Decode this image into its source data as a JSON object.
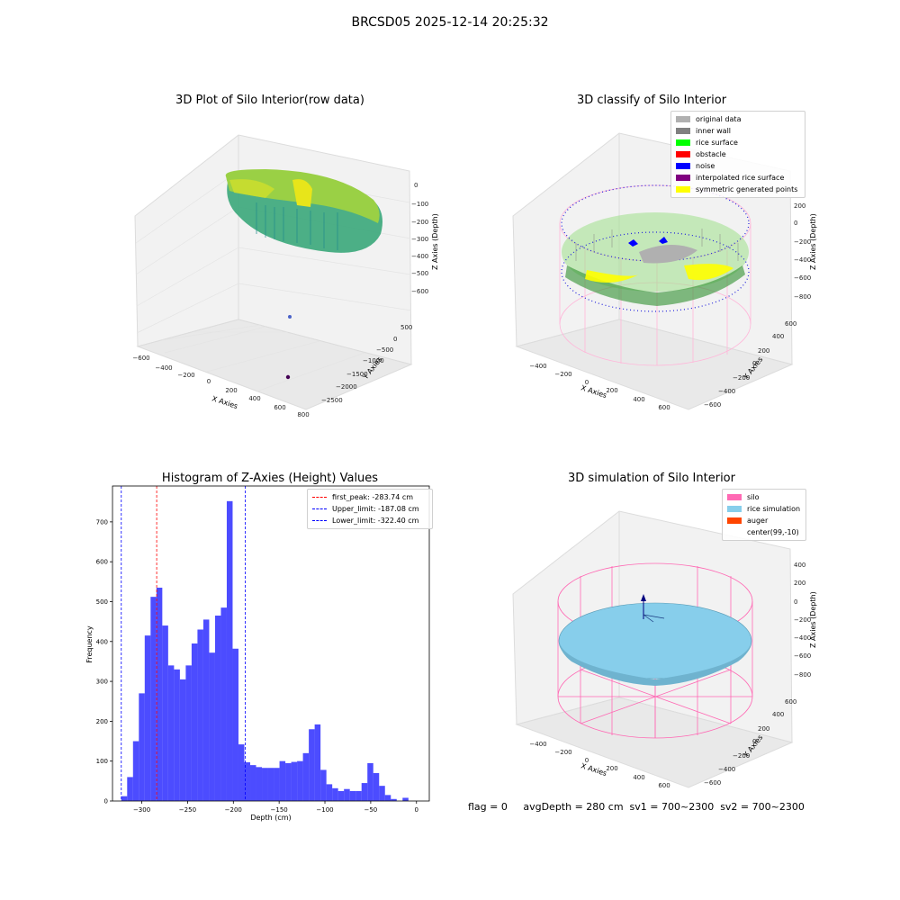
{
  "figure": {
    "title": "BRCSD05 2025-12-14 20:25:32",
    "status_line": "flag = 0     avgDepth = 280 cm  sv1 = 700~2300  sv2 = 700~2300"
  },
  "panels": {
    "raw": {
      "title": "3D Plot of Silo Interior(row data)",
      "xlabel": "X Axies",
      "ylabel": "Y Axies",
      "zlabel": "Z Axies (Depth)",
      "x_ticks": [
        "−600",
        "−400",
        "−200",
        "0",
        "200",
        "400",
        "600",
        "800"
      ],
      "y_ticks": [
        "500",
        "0",
        "−500",
        "−1000",
        "−1500",
        "−2000",
        "−2500"
      ],
      "z_ticks": [
        "0",
        "−100",
        "−200",
        "−300",
        "−400",
        "−500",
        "−600"
      ]
    },
    "classify": {
      "title": "3D classify of Silo Interior",
      "xlabel": "X Axies",
      "ylabel": "Y Axies",
      "zlabel": "Z Axies (Depth)",
      "x_ticks": [
        "−400",
        "−200",
        "0",
        "200",
        "400",
        "600"
      ],
      "y_ticks": [
        "600",
        "400",
        "200",
        "0",
        "−200",
        "−400",
        "−600"
      ],
      "z_ticks": [
        "200",
        "0",
        "−200",
        "−400",
        "−600",
        "−800"
      ],
      "legend": [
        {
          "label": "original data",
          "color": "#b0b0b0"
        },
        {
          "label": "inner wall",
          "color": "#808080"
        },
        {
          "label": "rice surface",
          "color": "#00ff00"
        },
        {
          "label": "obstacle",
          "color": "#ff0000"
        },
        {
          "label": "noise",
          "color": "#0000ff"
        },
        {
          "label": "interpolated rice surface",
          "color": "#800080"
        },
        {
          "label": "symmetric generated points",
          "color": "#ffff00"
        }
      ]
    },
    "simulation": {
      "title": "3D simulation of Silo Interior",
      "xlabel": "X Axies",
      "ylabel": "Y Axies",
      "zlabel": "Z Axies (Depth)",
      "x_ticks": [
        "−400",
        "−200",
        "0",
        "200",
        "400",
        "600"
      ],
      "y_ticks": [
        "600",
        "400",
        "200",
        "0",
        "−200",
        "−400",
        "−600"
      ],
      "z_ticks": [
        "400",
        "200",
        "0",
        "−200",
        "−400",
        "−600",
        "−800"
      ],
      "legend": [
        {
          "label": "silo",
          "color": "#ff69b4"
        },
        {
          "label": "rice simulation",
          "color": "#87ceeb"
        },
        {
          "label": "auger",
          "color": "#ff4500"
        },
        {
          "label": "center(99,-10)",
          "color": ""
        }
      ]
    }
  },
  "chart_data": {
    "type": "bar",
    "title": "Histogram of Z-Axies (Height) Values",
    "xlabel": "Depth (cm)",
    "ylabel": "Frequency",
    "xlim": [
      -332,
      14
    ],
    "ylim": [
      0,
      790
    ],
    "x_ticks": [
      -300,
      -250,
      -200,
      -150,
      -100,
      -50,
      0
    ],
    "x_tick_labels": [
      "−300",
      "−250",
      "−200",
      "−150",
      "−100",
      "−50",
      "0"
    ],
    "y_ticks": [
      0,
      100,
      200,
      300,
      400,
      500,
      600,
      700
    ],
    "bin_start": -322.4,
    "bin_width": 6.4,
    "bar_color": "#0000ff",
    "values": [
      12,
      60,
      150,
      270,
      415,
      512,
      535,
      440,
      340,
      330,
      305,
      340,
      395,
      430,
      455,
      372,
      465,
      485,
      752,
      382,
      142,
      97,
      90,
      85,
      83,
      83,
      83,
      100,
      95,
      98,
      100,
      120,
      180,
      192,
      78,
      42,
      32,
      25,
      30,
      25,
      25,
      45,
      95,
      70,
      38,
      15,
      5,
      0,
      8
    ],
    "vlines": [
      {
        "label": "first_peak: -283.74 cm",
        "x": -283.74,
        "color": "#ff0000"
      },
      {
        "label": "Upper_limit: -187.08 cm",
        "x": -187.08,
        "color": "#0000ff"
      },
      {
        "label": "Lower_limit: -322.40 cm",
        "x": -322.4,
        "color": "#0000ff"
      }
    ]
  }
}
